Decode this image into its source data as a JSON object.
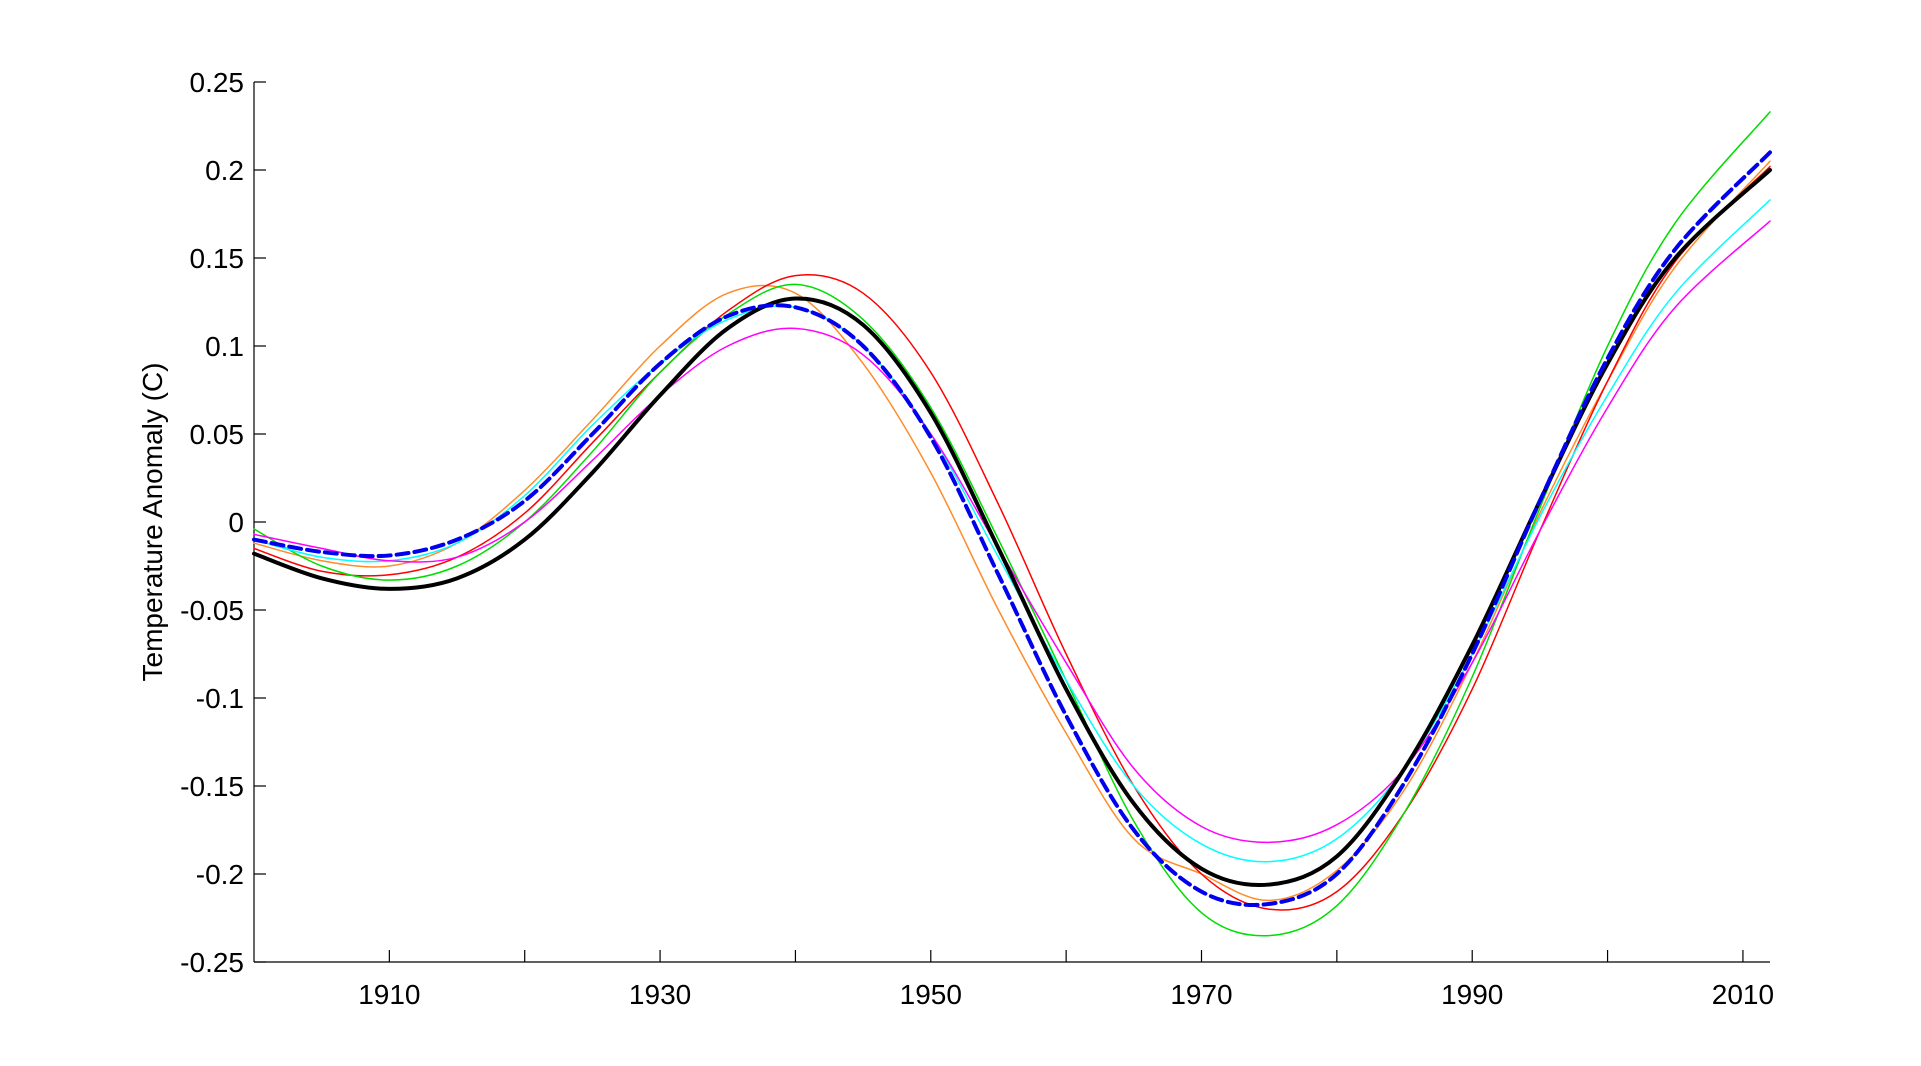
{
  "chart_data": {
    "type": "line",
    "title": "",
    "xlabel": "",
    "ylabel": "Temperature Anomaly (C)",
    "xlim": [
      1900,
      2012
    ],
    "ylim": [
      -0.25,
      0.25
    ],
    "grid": false,
    "x_ticks": [
      1910,
      1930,
      1950,
      1970,
      1990,
      2010
    ],
    "x_minor_ticks": [
      1920,
      1940,
      1960,
      1980,
      2000
    ],
    "y_ticks": [
      0.25,
      0.2,
      0.15,
      0.1,
      0.05,
      0,
      -0.05,
      -0.1,
      -0.15,
      -0.2,
      -0.25
    ],
    "x_tick_labels": [
      "1910",
      "1930",
      "1950",
      "1970",
      "1990",
      "2010"
    ],
    "y_tick_labels": [
      "0.25",
      "0.2",
      "0.15",
      "0.1",
      "0.05",
      "0",
      "-0.05",
      "-0.1",
      "-0.15",
      "-0.2",
      "-0.25"
    ],
    "x": [
      1900,
      1905,
      1910,
      1915,
      1920,
      1925,
      1930,
      1935,
      1940,
      1945,
      1950,
      1955,
      1960,
      1965,
      1970,
      1975,
      1980,
      1985,
      1990,
      1995,
      2000,
      2005,
      2012
    ],
    "series": [
      {
        "color": "#ff8c2a",
        "width": 1.5,
        "dash": "",
        "values": [
          -0.012,
          -0.022,
          -0.025,
          -0.012,
          0.018,
          0.058,
          0.1,
          0.13,
          0.13,
          0.09,
          0.028,
          -0.05,
          -0.12,
          -0.18,
          -0.2,
          -0.215,
          -0.198,
          -0.152,
          -0.08,
          0.005,
          0.08,
          0.145,
          0.205
        ]
      },
      {
        "color": "#ff0000",
        "width": 1.5,
        "dash": "",
        "values": [
          -0.015,
          -0.028,
          -0.03,
          -0.02,
          0.005,
          0.045,
          0.085,
          0.12,
          0.14,
          0.13,
          0.085,
          0.01,
          -0.075,
          -0.15,
          -0.2,
          -0.22,
          -0.21,
          -0.165,
          -0.095,
          -0.005,
          0.08,
          0.148,
          0.202
        ]
      },
      {
        "color": "#00dd00",
        "width": 1.5,
        "dash": "",
        "values": [
          -0.004,
          -0.025,
          -0.033,
          -0.025,
          0.0,
          0.04,
          0.085,
          0.118,
          0.135,
          0.115,
          0.065,
          -0.01,
          -0.09,
          -0.17,
          -0.222,
          -0.235,
          -0.218,
          -0.165,
          -0.088,
          0.008,
          0.1,
          0.17,
          0.233
        ]
      },
      {
        "color": "#00ffff",
        "width": 1.5,
        "dash": "",
        "values": [
          -0.01,
          -0.02,
          -0.022,
          -0.012,
          0.015,
          0.055,
          0.09,
          0.115,
          0.122,
          0.1,
          0.05,
          -0.02,
          -0.09,
          -0.15,
          -0.183,
          -0.193,
          -0.18,
          -0.14,
          -0.075,
          0.003,
          0.072,
          0.13,
          0.183
        ]
      },
      {
        "color": "#ff00ff",
        "width": 1.5,
        "dash": "",
        "values": [
          -0.007,
          -0.015,
          -0.022,
          -0.02,
          0.0,
          0.035,
          0.072,
          0.1,
          0.11,
          0.095,
          0.05,
          -0.015,
          -0.08,
          -0.14,
          -0.173,
          -0.182,
          -0.172,
          -0.14,
          -0.08,
          -0.005,
          0.065,
          0.122,
          0.171
        ]
      },
      {
        "color": "#000000",
        "width": 4,
        "dash": "",
        "values": [
          -0.018,
          -0.032,
          -0.038,
          -0.032,
          -0.01,
          0.028,
          0.072,
          0.11,
          0.127,
          0.112,
          0.062,
          -0.015,
          -0.095,
          -0.16,
          -0.197,
          -0.206,
          -0.19,
          -0.14,
          -0.07,
          0.012,
          0.09,
          0.15,
          0.2
        ]
      },
      {
        "color": "#0000ee",
        "width": 4,
        "dash": "12,6",
        "values": [
          -0.01,
          -0.017,
          -0.019,
          -0.01,
          0.012,
          0.05,
          0.09,
          0.117,
          0.122,
          0.1,
          0.048,
          -0.03,
          -0.11,
          -0.175,
          -0.21,
          -0.217,
          -0.2,
          -0.148,
          -0.075,
          0.012,
          0.093,
          0.155,
          0.21
        ]
      }
    ]
  }
}
